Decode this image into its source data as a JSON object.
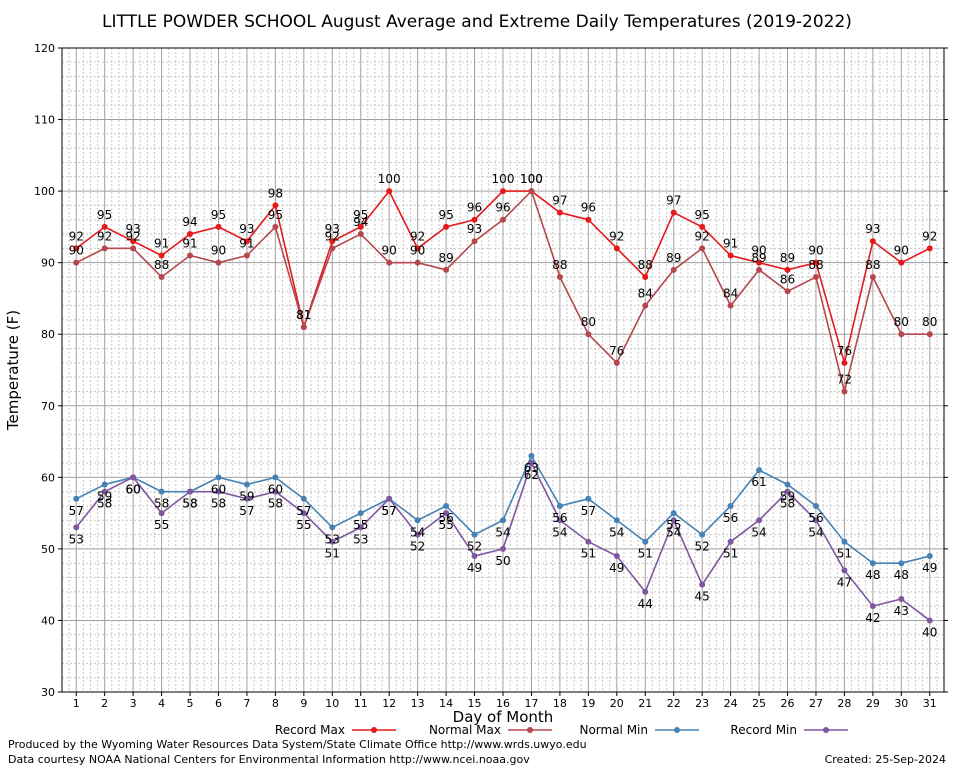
{
  "chart_data": {
    "type": "line",
    "title": "LITTLE POWDER SCHOOL August Average and Extreme Daily Temperatures (2019-2022)",
    "xlabel": "Day of Month",
    "ylabel": "Temperature (F)",
    "ylim": [
      30,
      120
    ],
    "yticks": [
      30,
      40,
      50,
      60,
      70,
      80,
      90,
      100,
      110,
      120
    ],
    "x": [
      1,
      2,
      3,
      4,
      5,
      6,
      7,
      8,
      9,
      10,
      11,
      12,
      13,
      14,
      15,
      16,
      17,
      18,
      19,
      20,
      21,
      22,
      23,
      24,
      25,
      26,
      27,
      28,
      29,
      30,
      31
    ],
    "grid": true,
    "legend_position": "bottom",
    "series": [
      {
        "name": "Record Max",
        "color": "#e41a1c",
        "values": [
          92,
          95,
          93,
          91,
          94,
          95,
          93,
          98,
          81,
          93,
          95,
          100,
          92,
          95,
          96,
          100,
          100,
          97,
          96,
          92,
          88,
          97,
          95,
          91,
          90,
          89,
          90,
          76,
          93,
          90,
          92
        ]
      },
      {
        "name": "Normal Max",
        "color": "#b5484d",
        "values": [
          90,
          92,
          92,
          88,
          91,
          90,
          91,
          95,
          81,
          92,
          94,
          90,
          90,
          89,
          93,
          96,
          100,
          88,
          80,
          76,
          84,
          89,
          92,
          84,
          89,
          86,
          88,
          72,
          88,
          80,
          80
        ]
      },
      {
        "name": "Normal Min",
        "color": "#4682b4",
        "values": [
          57,
          59,
          60,
          58,
          58,
          60,
          59,
          60,
          57,
          53,
          55,
          57,
          54,
          56,
          52,
          54,
          63,
          56,
          57,
          54,
          51,
          55,
          52,
          56,
          61,
          59,
          56,
          51,
          48,
          48,
          49
        ]
      },
      {
        "name": "Record Min",
        "color": "#7e57a0",
        "values": [
          53,
          58,
          60,
          55,
          58,
          58,
          57,
          58,
          55,
          51,
          53,
          57,
          52,
          55,
          49,
          50,
          62,
          54,
          51,
          49,
          44,
          54,
          45,
          51,
          54,
          58,
          54,
          47,
          42,
          43,
          40
        ]
      }
    ]
  },
  "footer": {
    "line1": "Produced by the Wyoming Water Resources Data System/State Climate Office http://www.wrds.uwyo.edu",
    "line2": "Data courtesy NOAA National Centers for Environmental Information http://www.ncei.noaa.gov",
    "created": "Created:  25-Sep-2024"
  }
}
